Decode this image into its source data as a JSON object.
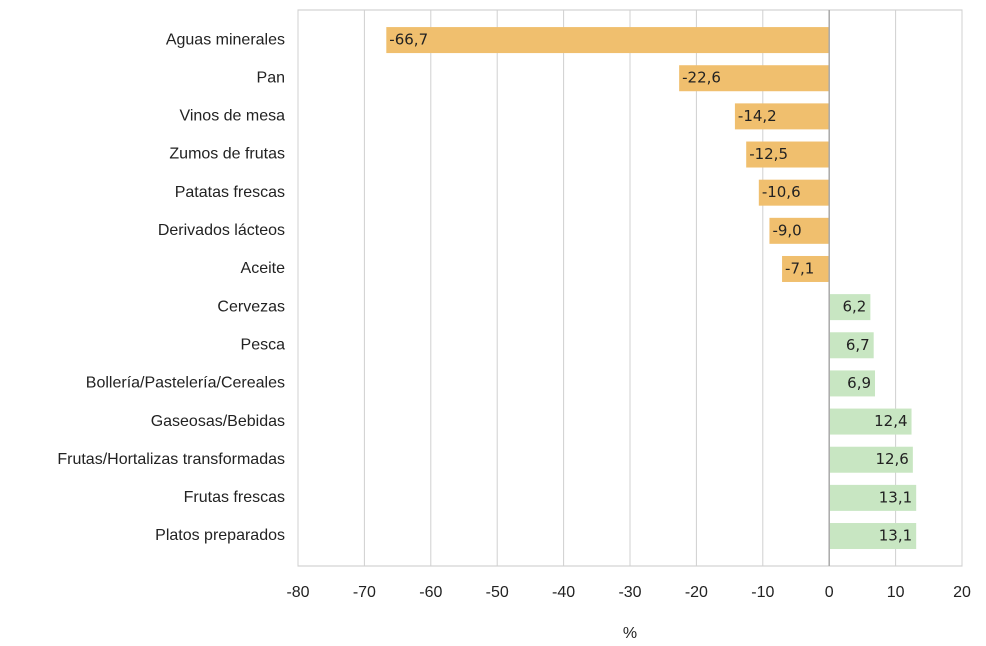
{
  "chart_data": {
    "type": "barh",
    "categories": [
      "Aguas minerales",
      "Pan",
      "Vinos de mesa",
      "Zumos de frutas",
      "Patatas frescas",
      "Derivados lácteos",
      "Aceite",
      "Cervezas",
      "Pesca",
      "Bollería/Pastelería/Cereales",
      "Gaseosas/Bebidas",
      "Frutas/Hortalizas transformadas",
      "Frutas frescas",
      "Platos preparados"
    ],
    "values": [
      -66.7,
      -22.6,
      -14.2,
      -12.5,
      -10.6,
      -9.0,
      -7.1,
      6.2,
      6.7,
      6.9,
      12.4,
      12.6,
      13.1,
      13.1
    ],
    "value_labels": [
      "-66,7",
      "-22,6",
      "-14,2",
      "-12,5",
      "-10,6",
      "-9,0",
      "-7,1",
      "6,2",
      "6,7",
      "6,9",
      "12,4",
      "12,6",
      "13,1",
      "13,1"
    ],
    "negative_color": "#f0bf6e",
    "positive_color": "#c8e6c2",
    "xlabel": "%",
    "xlim": [
      -80,
      20
    ],
    "xticks": [
      -80,
      -70,
      -60,
      -50,
      -40,
      -30,
      -20,
      -10,
      0,
      10,
      20
    ],
    "grid": true
  }
}
